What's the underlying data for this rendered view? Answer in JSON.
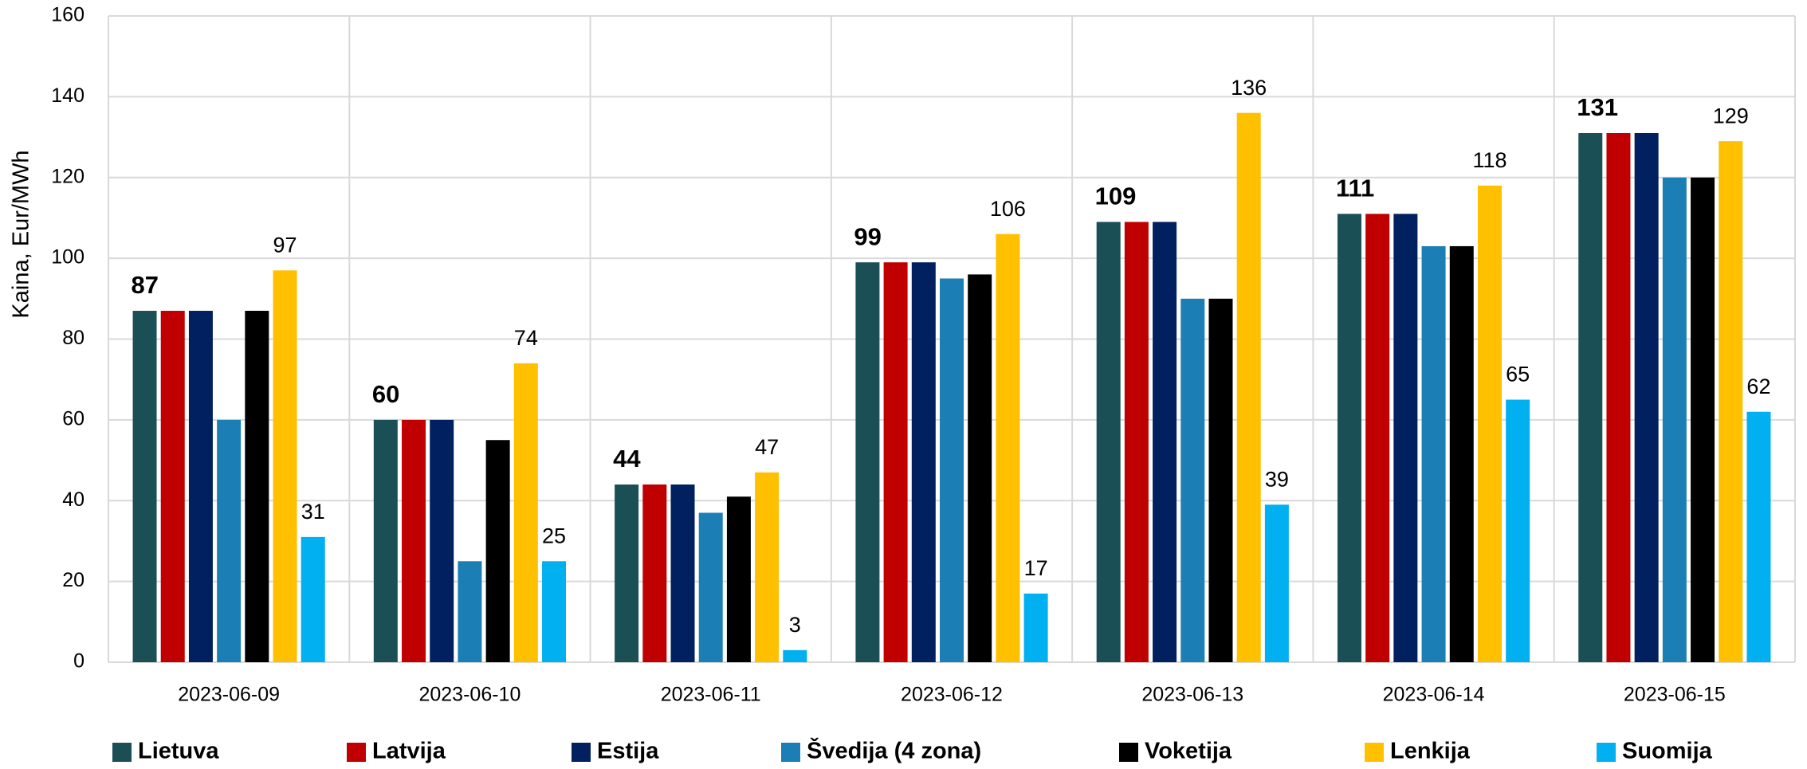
{
  "chart_data": {
    "type": "bar",
    "y_label": "Kaina, Eur/MWh",
    "categories": [
      "2023-06-09",
      "2023-06-10",
      "2023-06-11",
      "2023-06-12",
      "2023-06-13",
      "2023-06-14",
      "2023-06-15"
    ],
    "series": [
      {
        "name": "Lietuva",
        "color": "#1b4f56",
        "values": [
          87,
          60,
          44,
          99,
          109,
          111,
          131
        ],
        "show_labels": true,
        "label_bold": true
      },
      {
        "name": "Latvija",
        "color": "#c00000",
        "values": [
          87,
          60,
          44,
          99,
          109,
          111,
          131
        ]
      },
      {
        "name": "Estija",
        "color": "#002060",
        "values": [
          87,
          60,
          44,
          99,
          109,
          111,
          131
        ]
      },
      {
        "name": "Švedija (4 zona)",
        "color": "#1b7fb5",
        "values": [
          60,
          25,
          37,
          95,
          90,
          103,
          120
        ]
      },
      {
        "name": "Voketija",
        "color": "#000000",
        "values": [
          87,
          55,
          41,
          96,
          90,
          103,
          120
        ]
      },
      {
        "name": "Lenkija",
        "color": "#ffc000",
        "values": [
          97,
          74,
          47,
          106,
          136,
          118,
          129
        ],
        "show_labels": true
      },
      {
        "name": "Suomija",
        "color": "#00b0f0",
        "values": [
          31,
          25,
          3,
          17,
          39,
          65,
          62
        ],
        "show_labels": true
      }
    ],
    "ylim": [
      0,
      160
    ],
    "yticks": [
      0,
      20,
      40,
      60,
      80,
      100,
      120,
      140,
      160
    ],
    "grid": true,
    "legend": "bottom"
  }
}
